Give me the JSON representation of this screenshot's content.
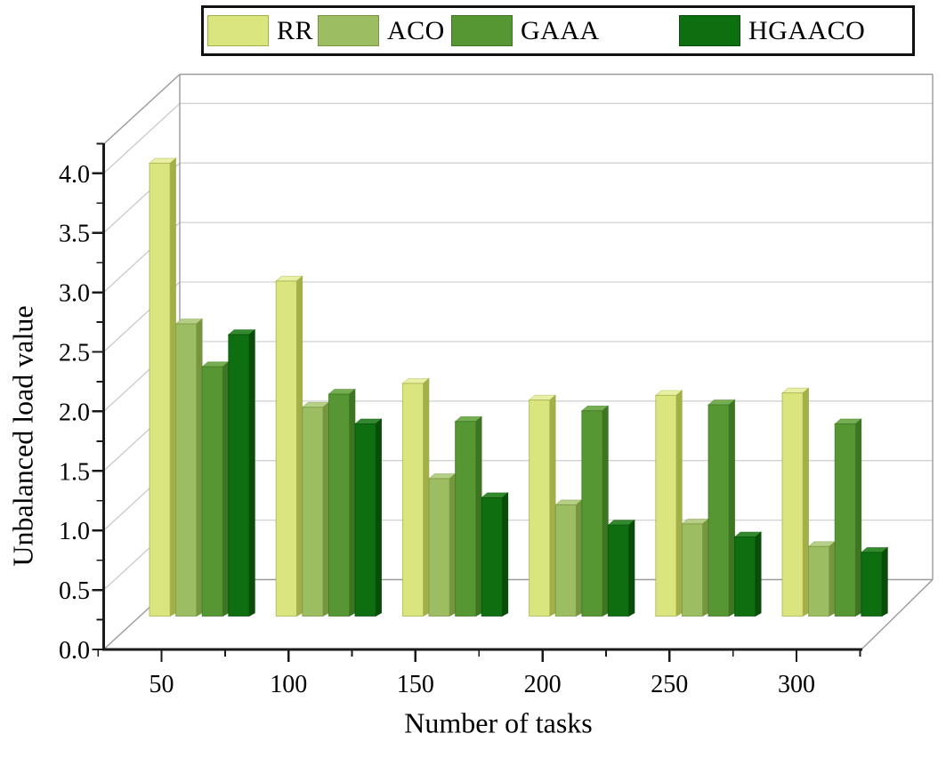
{
  "chart_data": {
    "type": "bar",
    "style": "3d-grouped-bars",
    "title": "",
    "xlabel": "Number of tasks",
    "ylabel": "Unbalanced load value",
    "categories": [
      "50",
      "100",
      "150",
      "200",
      "250",
      "300"
    ],
    "series": [
      {
        "name": "RR",
        "color": "#dae57e",
        "color_top": "#e9f0a6",
        "color_side": "#a3af47",
        "values": [
          4.07,
          3.08,
          2.22,
          2.08,
          2.12,
          2.14
        ]
      },
      {
        "name": "ACO",
        "color": "#9dbd62",
        "color_top": "#b6cf86",
        "color_side": "#77953f",
        "values": [
          2.72,
          2.02,
          1.42,
          1.2,
          1.04,
          0.85
        ]
      },
      {
        "name": "GAAA",
        "color": "#569733",
        "color_top": "#74ad52",
        "color_side": "#3d7522",
        "values": [
          2.36,
          2.13,
          1.9,
          1.99,
          2.04,
          1.88
        ]
      },
      {
        "name": "HGAACO",
        "color": "#0d6f10",
        "color_top": "#338a2e",
        "color_side": "#094d0a",
        "values": [
          2.63,
          1.88,
          1.26,
          1.03,
          0.93,
          0.8
        ]
      }
    ],
    "y_ticks": [
      "0.0",
      "0.5",
      "1.0",
      "1.5",
      "2.0",
      "2.5",
      "3.0",
      "3.5",
      "4.0"
    ],
    "ylim": [
      0,
      4.25
    ],
    "y_major_step": 0.5,
    "y_minor_step": 0.25,
    "grid": true,
    "legend_position": "top"
  },
  "colors": {
    "background": "#ffffff",
    "axis": "#1a1a1a",
    "gridline": "#d2d2d2",
    "wall_diagonal": "#c6c6c6",
    "frame": "#9a9a9a",
    "text": "#000000",
    "legend_border": "#111111"
  }
}
